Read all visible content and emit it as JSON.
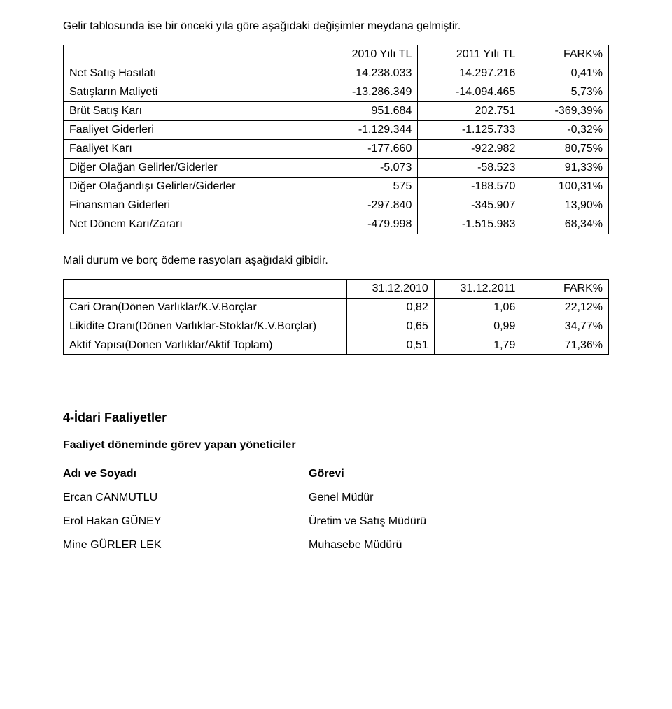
{
  "intro": "Gelir tablosunda ise bir önceki yıla göre aşağıdaki değişimler meydana gelmiştir.",
  "income_table": {
    "columns": [
      "",
      "2010 Yılı TL",
      "2011 Yılı TL",
      "FARK%"
    ],
    "col_widths": [
      "46%",
      "19%",
      "19%",
      "16%"
    ],
    "col_aligns": [
      "left",
      "right",
      "right",
      "right"
    ],
    "rows": [
      [
        "Net Satış Hasılatı",
        "14.238.033",
        "14.297.216",
        "0,41%"
      ],
      [
        "Satışların Maliyeti",
        "-13.286.349",
        "-14.094.465",
        "5,73%"
      ],
      [
        "Brüt Satış Karı",
        "951.684",
        "202.751",
        "-369,39%"
      ],
      [
        "Faaliyet Giderleri",
        "-1.129.344",
        "-1.125.733",
        "-0,32%"
      ],
      [
        "Faaliyet Karı",
        "-177.660",
        "-922.982",
        "80,75%"
      ],
      [
        "Diğer Olağan Gelirler/Giderler",
        "-5.073",
        "-58.523",
        "91,33%"
      ],
      [
        "Diğer Olağandışı Gelirler/Giderler",
        "575",
        "-188.570",
        "100,31%"
      ],
      [
        "Finansman Giderleri",
        "-297.840",
        "-345.907",
        "13,90%"
      ],
      [
        "Net Dönem Karı/Zararı",
        "-479.998",
        "-1.515.983",
        "68,34%"
      ]
    ]
  },
  "mali_text": "Mali durum ve borç ödeme rasyoları aşağıdaki gibidir.",
  "ratios_table": {
    "columns": [
      "",
      "31.12.2010",
      "31.12.2011",
      "FARK%"
    ],
    "col_widths": [
      "52%",
      "16%",
      "16%",
      "16%"
    ],
    "col_aligns": [
      "left",
      "right",
      "right",
      "right"
    ],
    "rows": [
      [
        "Cari Oran(Dönen Varlıklar/K.V.Borçlar",
        "0,82",
        "1,06",
        "22,12%"
      ],
      [
        "Likidite Oranı(Dönen Varlıklar-Stoklar/K.V.Borçlar)",
        "0,65",
        "0,99",
        "34,77%"
      ],
      [
        "Aktif Yapısı(Dönen Varlıklar/Aktif Toplam)",
        "0,51",
        "1,79",
        "71,36%"
      ]
    ]
  },
  "section4_heading": "4-İdari Faaliyetler",
  "section4_sub": "Faaliyet döneminde görev yapan yöneticiler",
  "managers_table": {
    "columns": [
      "Adı ve Soyadı",
      "Görevi"
    ],
    "col_widths": [
      "45%",
      "55%"
    ],
    "rows": [
      [
        "Ercan CANMUTLU",
        "Genel Müdür"
      ],
      [
        "Erol Hakan GÜNEY",
        "Üretim ve Satış Müdürü"
      ],
      [
        "Mine GÜRLER LEK",
        "Muhasebe Müdürü"
      ]
    ]
  }
}
